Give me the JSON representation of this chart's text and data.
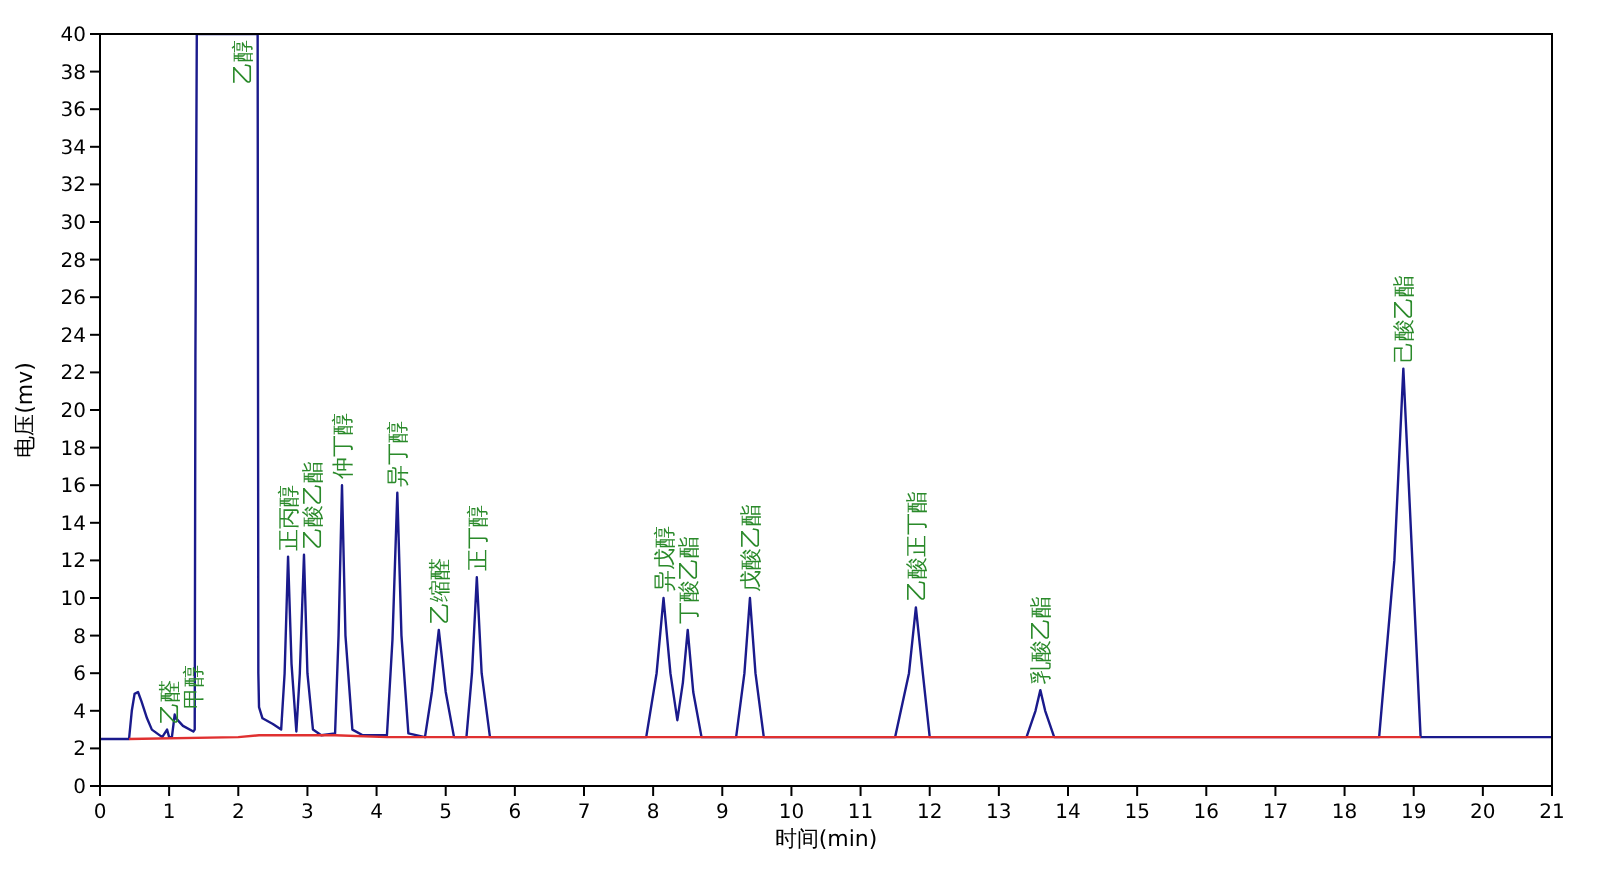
{
  "chart_data": {
    "type": "line",
    "xlabel": "时间(min)",
    "ylabel": "电压(mv)",
    "xlim": [
      0,
      21
    ],
    "xticks": [
      0,
      1,
      2,
      3,
      4,
      5,
      6,
      7,
      8,
      9,
      10,
      11,
      12,
      13,
      14,
      15,
      16,
      17,
      18,
      19,
      20,
      21
    ],
    "ylim": [
      0,
      40
    ],
    "yticks": [
      0,
      2,
      4,
      6,
      8,
      10,
      12,
      14,
      16,
      18,
      20,
      22,
      24,
      26,
      28,
      30,
      32,
      34,
      36,
      38,
      40
    ],
    "grid": false,
    "marker": "none",
    "line_style": "solid",
    "series": [
      {
        "color": "#1a1a8c",
        "x": [
          0,
          0.42,
          0.46,
          0.5,
          0.55,
          0.6,
          0.68,
          0.75,
          0.9,
          0.97,
          1.0,
          1.04,
          1.08,
          1.1,
          1.2,
          1.35,
          1.37,
          1.38,
          1.4,
          2.28,
          2.29,
          2.3,
          2.35,
          2.5,
          2.62,
          2.67,
          2.72,
          2.77,
          2.84,
          2.89,
          2.95,
          3.0,
          3.08,
          3.2,
          3.4,
          3.45,
          3.5,
          3.55,
          3.65,
          3.8,
          4.15,
          4.23,
          4.3,
          4.36,
          4.46,
          4.7,
          4.8,
          4.9,
          5.0,
          5.12,
          5.3,
          5.38,
          5.45,
          5.52,
          5.64,
          7.9,
          8.05,
          8.15,
          8.25,
          8.35,
          8.43,
          8.5,
          8.58,
          8.7,
          9.2,
          9.32,
          9.4,
          9.48,
          9.6,
          11.5,
          11.7,
          11.8,
          11.9,
          12.0,
          13.4,
          13.53,
          13.6,
          13.67,
          13.8,
          18.5,
          18.72,
          18.85,
          18.98,
          19.1,
          21
        ],
        "values": [
          2.5,
          2.5,
          4.0,
          4.9,
          5.0,
          4.5,
          3.6,
          3.0,
          2.6,
          3.0,
          2.6,
          2.6,
          3.8,
          3.6,
          3.2,
          2.9,
          3.0,
          22.8,
          40,
          40,
          6.0,
          4.2,
          3.6,
          3.3,
          3.0,
          6.0,
          12.2,
          6.5,
          2.9,
          6.0,
          12.3,
          6.0,
          3.0,
          2.7,
          2.8,
          8.0,
          16.0,
          8.0,
          3.0,
          2.7,
          2.7,
          7.8,
          15.6,
          8.0,
          2.8,
          2.6,
          5.0,
          8.3,
          5.0,
          2.6,
          2.6,
          6.0,
          11.1,
          6.0,
          2.6,
          2.6,
          6.0,
          10.0,
          6.0,
          3.5,
          5.5,
          8.3,
          5.0,
          2.6,
          2.6,
          6.0,
          10.0,
          6.0,
          2.6,
          2.6,
          6.0,
          9.5,
          6.0,
          2.6,
          2.6,
          4.0,
          5.1,
          4.0,
          2.6,
          2.6,
          12.0,
          22.2,
          12.0,
          2.6,
          2.6
        ]
      },
      {
        "color": "#e03030",
        "x": [
          0.42,
          2.0,
          2.3,
          3.4,
          4.15,
          19.1
        ],
        "values": [
          2.5,
          2.6,
          2.7,
          2.7,
          2.6,
          2.6
        ]
      }
    ],
    "annotations": [
      {
        "text": "乙醛",
        "x": 1.0,
        "y": 3.0
      },
      {
        "text": "甲醇",
        "x": 1.1,
        "y": 3.8
      },
      {
        "text": "乙醇",
        "x": 2.28,
        "y": 40
      },
      {
        "text": "正丙醇",
        "x": 2.72,
        "y": 12.2
      },
      {
        "text": "乙酸乙酯",
        "x": 2.95,
        "y": 12.3
      },
      {
        "text": "仲丁醇",
        "x": 3.5,
        "y": 16.0
      },
      {
        "text": "异丁醇",
        "x": 4.3,
        "y": 15.6
      },
      {
        "text": "乙缩醛",
        "x": 4.9,
        "y": 8.3
      },
      {
        "text": "正丁醇",
        "x": 5.45,
        "y": 11.1
      },
      {
        "text": "异戊醇",
        "x": 8.15,
        "y": 10.0
      },
      {
        "text": "丁酸乙酯",
        "x": 8.5,
        "y": 8.3
      },
      {
        "text": "戊酸乙酯",
        "x": 9.4,
        "y": 10.0
      },
      {
        "text": "乙酸正丁酯",
        "x": 11.8,
        "y": 9.5
      },
      {
        "text": "乳酸乙酯",
        "x": 13.6,
        "y": 5.1
      },
      {
        "text": "己酸乙酯",
        "x": 18.85,
        "y": 22.2
      }
    ]
  }
}
